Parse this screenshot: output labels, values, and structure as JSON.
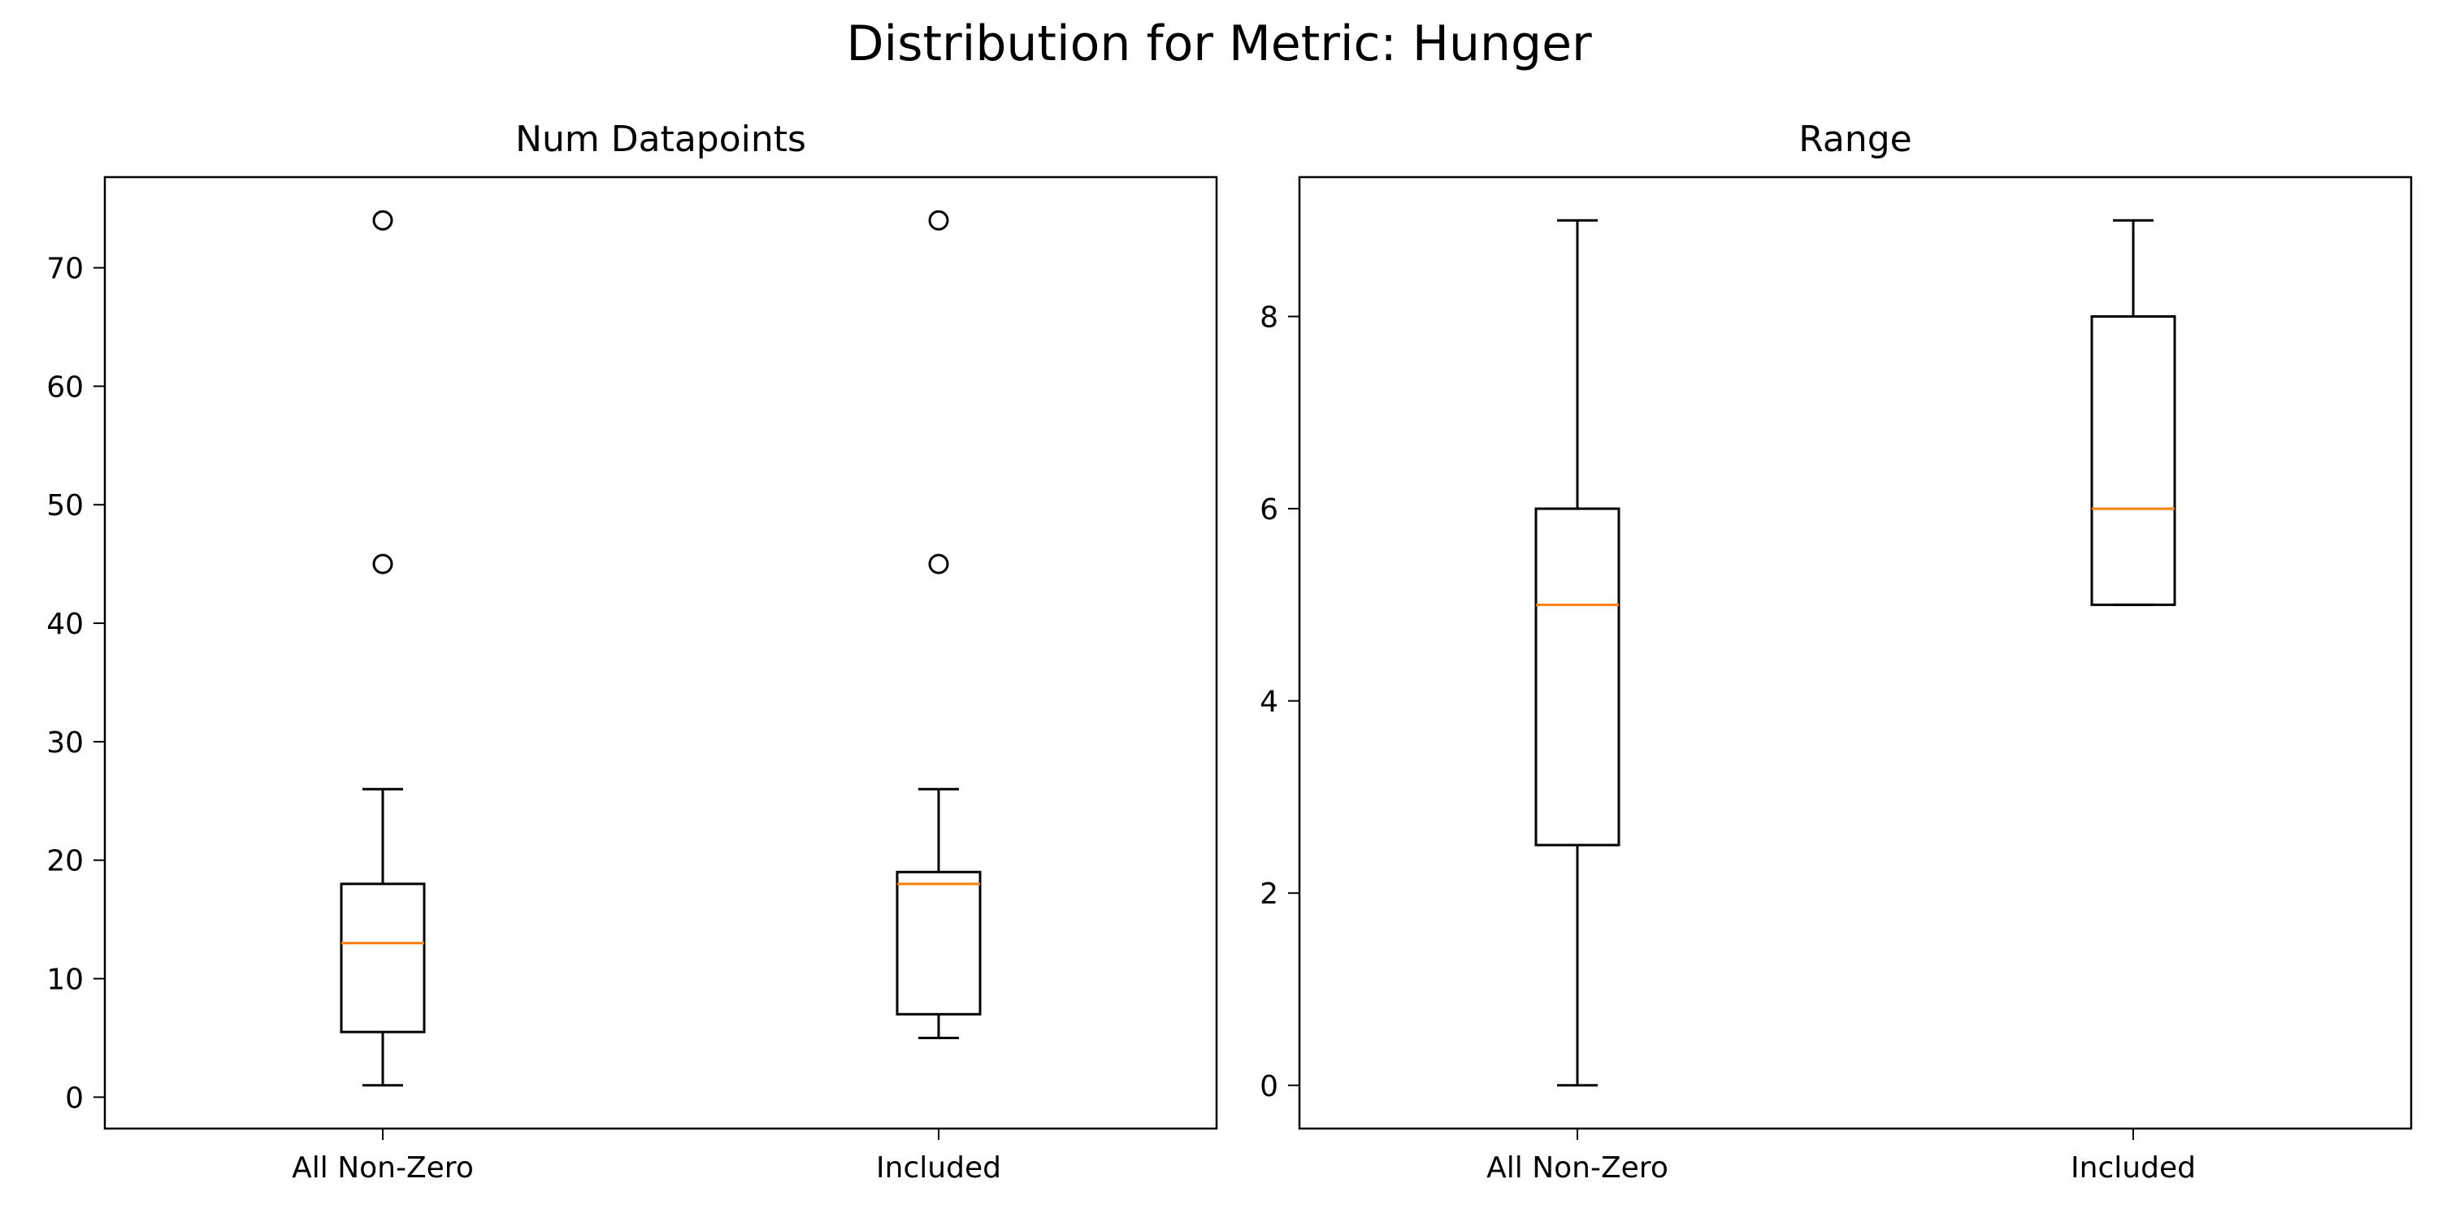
{
  "figure": {
    "title": "Distribution for Metric: Hunger"
  },
  "chart_data": [
    {
      "type": "box",
      "title": "Num Datapoints",
      "xlabel": "",
      "ylabel": "",
      "categories": [
        "All Non-Zero",
        "Included"
      ],
      "ylim": [
        -2.65,
        77.65
      ],
      "yticks": [
        0,
        10,
        20,
        30,
        40,
        50,
        60,
        70
      ],
      "grid": false,
      "boxes": [
        {
          "whisker_low": 1,
          "q1": 5.5,
          "median": 13,
          "q3": 18,
          "whisker_high": 26,
          "outliers": [
            45,
            74
          ]
        },
        {
          "whisker_low": 5,
          "q1": 7,
          "median": 18,
          "q3": 19,
          "whisker_high": 26,
          "outliers": [
            45,
            74
          ]
        }
      ]
    },
    {
      "type": "box",
      "title": "Range",
      "xlabel": "",
      "ylabel": "",
      "categories": [
        "All Non-Zero",
        "Included"
      ],
      "ylim": [
        -0.45,
        9.45
      ],
      "yticks": [
        0,
        2,
        4,
        6,
        8
      ],
      "grid": false,
      "boxes": [
        {
          "whisker_low": 0,
          "q1": 2.5,
          "median": 5,
          "q3": 6,
          "whisker_high": 9,
          "outliers": []
        },
        {
          "whisker_low": 5,
          "q1": 5,
          "median": 6,
          "q3": 8,
          "whisker_high": 9,
          "outliers": []
        }
      ]
    }
  ],
  "colors": {
    "box": "#000000",
    "median": "#ff7f0e",
    "background": "#ffffff"
  }
}
